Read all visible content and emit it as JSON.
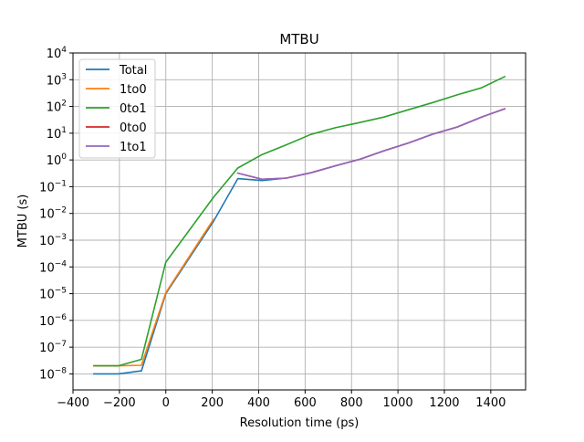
{
  "chart_data": {
    "type": "line",
    "title": "MTBU",
    "xlabel": "Resolution time (ps)",
    "ylabel": "MTBU (s)",
    "xlim": [
      -400,
      1550
    ],
    "ylim_exp": [
      -8.6,
      4
    ],
    "yscale": "log",
    "grid": true,
    "legend_position": "top-left",
    "x_ticks": [
      -400,
      -200,
      0,
      200,
      400,
      600,
      800,
      1000,
      1200,
      1400
    ],
    "x_tick_labels": [
      "−400",
      "−200",
      "0",
      "200",
      "400",
      "600",
      "800",
      "1000",
      "1200",
      "1400"
    ],
    "y_tick_exps": [
      -8,
      -7,
      -6,
      -5,
      -4,
      -3,
      -2,
      -1,
      0,
      1,
      2,
      3,
      4
    ],
    "y_tick_labels": [
      {
        "base": "10",
        "exp": "−8"
      },
      {
        "base": "10",
        "exp": "−7"
      },
      {
        "base": "10",
        "exp": "−6"
      },
      {
        "base": "10",
        "exp": "−5"
      },
      {
        "base": "10",
        "exp": "−4"
      },
      {
        "base": "10",
        "exp": "−3"
      },
      {
        "base": "10",
        "exp": "−2"
      },
      {
        "base": "10",
        "exp": "−1"
      },
      {
        "base": "10",
        "exp": "0"
      },
      {
        "base": "10",
        "exp": "1"
      },
      {
        "base": "10",
        "exp": "2"
      },
      {
        "base": "10",
        "exp": "3"
      },
      {
        "base": "10",
        "exp": "4"
      }
    ],
    "series": [
      {
        "name": "Total",
        "color": "#1f77b4",
        "points": [
          [
            -310,
            1e-08
          ],
          [
            -205,
            1e-08
          ],
          [
            -105,
            1.3e-08
          ],
          [
            0,
            1e-05
          ],
          [
            205,
            0.005
          ],
          [
            310,
            0.2
          ],
          [
            415,
            0.17
          ],
          [
            520,
            0.21
          ],
          [
            625,
            0.33
          ],
          [
            730,
            0.6
          ],
          [
            835,
            1.05
          ],
          [
            940,
            2.2
          ],
          [
            1045,
            4.3
          ],
          [
            1150,
            9.2
          ],
          [
            1255,
            17
          ],
          [
            1360,
            40
          ],
          [
            1460,
            82
          ]
        ]
      },
      {
        "name": "1to0",
        "color": "#ff7f0e",
        "points": [
          [
            -310,
            2e-08
          ],
          [
            -205,
            2e-08
          ],
          [
            -105,
            2.1e-08
          ],
          [
            0,
            1.1e-05
          ],
          [
            205,
            0.006
          ]
        ]
      },
      {
        "name": "0to1",
        "color": "#2ca02c",
        "points": [
          [
            -310,
            2e-08
          ],
          [
            -205,
            2e-08
          ],
          [
            -105,
            3.5e-08
          ],
          [
            0,
            0.00015
          ],
          [
            205,
            0.04
          ],
          [
            310,
            0.5
          ],
          [
            415,
            1.6
          ],
          [
            520,
            3.7
          ],
          [
            625,
            9
          ],
          [
            730,
            16
          ],
          [
            835,
            25
          ],
          [
            940,
            40
          ],
          [
            1045,
            75
          ],
          [
            1150,
            140
          ],
          [
            1255,
            270
          ],
          [
            1360,
            500
          ],
          [
            1460,
            1300
          ]
        ]
      },
      {
        "name": "0to0",
        "color": "#d62728",
        "points": [
          [
            310,
            0.32
          ],
          [
            415,
            0.19
          ],
          [
            520,
            0.21
          ],
          [
            625,
            0.33
          ],
          [
            730,
            0.6
          ],
          [
            835,
            1.05
          ],
          [
            940,
            2.2
          ],
          [
            1045,
            4.3
          ],
          [
            1150,
            9.2
          ],
          [
            1255,
            17
          ],
          [
            1360,
            40
          ],
          [
            1460,
            82
          ]
        ]
      },
      {
        "name": "1to1",
        "color": "#9467bd",
        "points": [
          [
            310,
            0.32
          ],
          [
            415,
            0.19
          ],
          [
            520,
            0.21
          ],
          [
            625,
            0.33
          ],
          [
            730,
            0.6
          ],
          [
            835,
            1.05
          ],
          [
            940,
            2.2
          ],
          [
            1045,
            4.3
          ],
          [
            1150,
            9.2
          ],
          [
            1255,
            17
          ],
          [
            1360,
            40
          ],
          [
            1460,
            82
          ]
        ]
      }
    ]
  }
}
